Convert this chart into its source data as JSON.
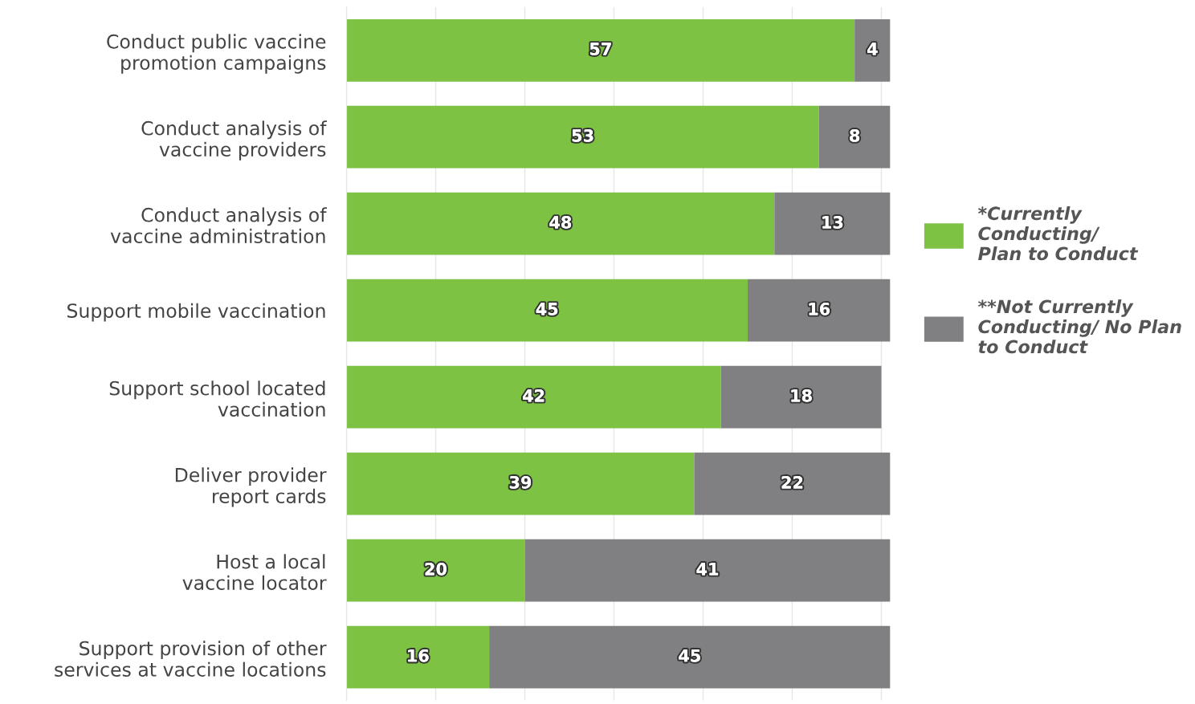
{
  "chart_data": {
    "type": "bar",
    "orientation": "horizontal",
    "stacked": true,
    "data_labels": true,
    "grid": "x",
    "tick_labels": "y",
    "legend": "right",
    "categories": [
      "Conduct public vaccine\npromotion campaigns",
      "Conduct analysis of\nvaccine providers",
      "Conduct analysis of\nvaccine administration",
      "Support mobile vaccination",
      "Support school located\nvaccination",
      "Deliver provider\nreport cards",
      "Host a local\nvaccine locator",
      "Support provision of other\nservices at vaccine locations"
    ],
    "xticks": [
      {
        "value": 0,
        "label": null
      },
      {
        "value": 10,
        "label": null
      },
      {
        "value": 20,
        "label": null
      },
      {
        "value": 30,
        "label": null
      },
      {
        "value": 40,
        "label": null
      },
      {
        "value": 50,
        "label": null
      },
      {
        "value": 60,
        "label": null
      }
    ],
    "series": [
      {
        "name": "*Currently\nConducting/\nPlan to Conduct",
        "color": "#7dc242",
        "values": [
          57,
          53,
          48,
          45,
          42,
          39,
          20,
          16
        ]
      },
      {
        "name": "**Not Currently\nConducting/ No Plan\nto Conduct",
        "color": "#808083",
        "values": [
          4,
          8,
          13,
          16,
          18,
          22,
          41,
          45
        ]
      }
    ]
  }
}
